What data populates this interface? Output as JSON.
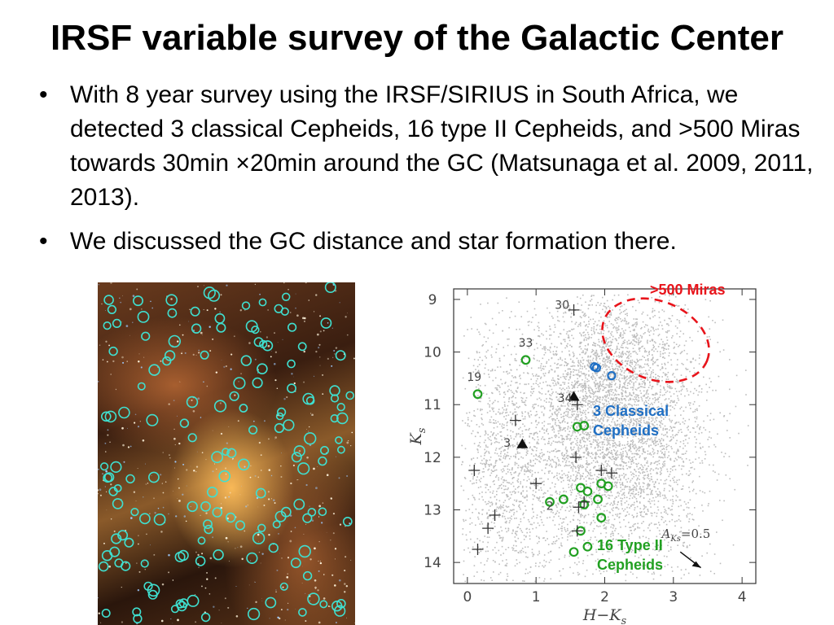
{
  "slide": {
    "title": "IRSF variable survey of the Galactic Center",
    "bullets": [
      "With 8 year survey using the IRSF/SIRIUS in South Africa, we detected 3 classical Cepheids, 16 type II Cepheids, and >500 Miras towards 30min ×20min around the GC (Matsunaga et al. 2009, 2011, 2013).",
      "We discussed the GC distance and star formation there."
    ]
  },
  "colors": {
    "miras": "#e8141b",
    "classical_cepheids": "#1f6fc4",
    "type2_cepheids": "#22a022",
    "field_stars": "#bdbdbd",
    "image_circles": "#3fe0d0"
  },
  "annotations": {
    "miras": ">500 Miras",
    "classical_cepheids": "3 Classical Cepheids",
    "type2_cepheids": "16 Type II Cepheids"
  },
  "chart_data": {
    "type": "scatter",
    "xlabel": "H−K",
    "xlabel_sub": "s",
    "ylabel": "K",
    "ylabel_sub": "s",
    "xlim": [
      -0.2,
      4.2
    ],
    "ylim": [
      8.8,
      14.4
    ],
    "y_inverted": true,
    "x_ticks": [
      0,
      1,
      2,
      3,
      4
    ],
    "y_ticks": [
      9,
      10,
      11,
      12,
      13,
      14
    ],
    "extinction_arrow": {
      "label": "A",
      "label_sub": "Ks",
      "label_value": "=0.5",
      "from": [
        3.1,
        13.8
      ],
      "to": [
        3.4,
        14.1
      ]
    },
    "series": [
      {
        "marker": "circle-blue",
        "points": [
          [
            1.85,
            10.28
          ],
          [
            2.1,
            10.45
          ],
          [
            1.88,
            10.3
          ]
        ]
      },
      {
        "marker": "circle-green",
        "points": [
          [
            0.15,
            10.8
          ],
          [
            0.85,
            10.15
          ],
          [
            1.6,
            11.42
          ],
          [
            1.7,
            11.4
          ],
          [
            1.65,
            12.58
          ],
          [
            1.75,
            12.65
          ],
          [
            1.95,
            12.5
          ],
          [
            2.05,
            12.55
          ],
          [
            1.4,
            12.8
          ],
          [
            1.7,
            12.9
          ],
          [
            1.9,
            12.8
          ],
          [
            1.95,
            13.15
          ],
          [
            1.65,
            13.4
          ],
          [
            1.55,
            13.8
          ],
          [
            1.75,
            13.7
          ],
          [
            1.2,
            12.85
          ]
        ]
      },
      {
        "marker": "plus",
        "points": [
          [
            1.55,
            9.2
          ],
          [
            1.6,
            11.0
          ],
          [
            0.7,
            11.3
          ],
          [
            1.58,
            12.0
          ],
          [
            1.95,
            12.25
          ],
          [
            2.1,
            12.3
          ],
          [
            0.1,
            12.25
          ],
          [
            1.0,
            12.5
          ],
          [
            1.7,
            12.85
          ],
          [
            1.62,
            12.95
          ],
          [
            0.4,
            13.1
          ],
          [
            0.3,
            13.35
          ],
          [
            1.6,
            13.4
          ],
          [
            0.15,
            13.75
          ]
        ]
      },
      {
        "marker": "triangle",
        "points": [
          [
            1.55,
            10.85
          ],
          [
            0.8,
            11.75
          ]
        ]
      }
    ],
    "point_labels": [
      {
        "text": "30",
        "x": 1.38,
        "y": 9.18
      },
      {
        "text": "33",
        "x": 0.85,
        "y": 9.9
      },
      {
        "text": "19",
        "x": 0.1,
        "y": 10.55
      },
      {
        "text": "34",
        "x": 1.42,
        "y": 10.95
      },
      {
        "text": "3",
        "x": 0.58,
        "y": 11.8
      },
      {
        "text": "2",
        "x": 1.2,
        "y": 13.0
      }
    ]
  }
}
